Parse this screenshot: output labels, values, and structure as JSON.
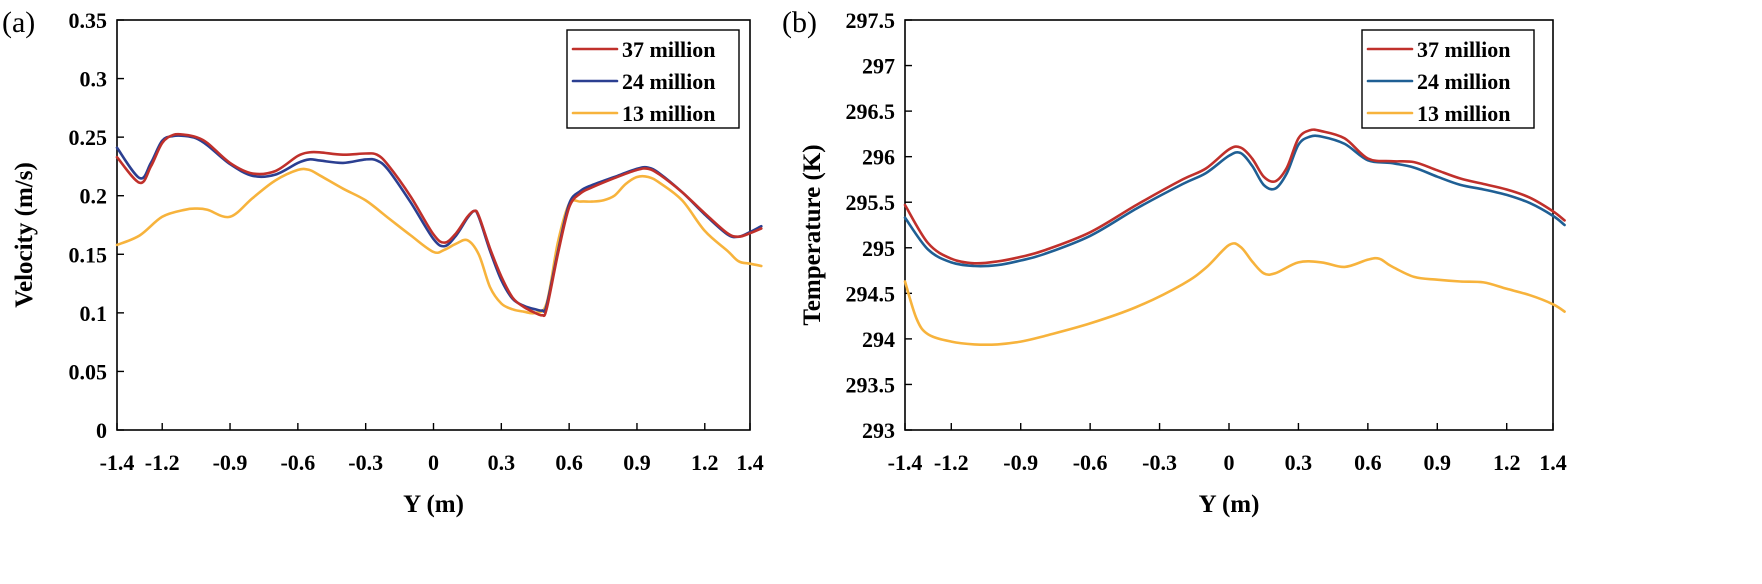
{
  "chart_data": [
    {
      "type": "line",
      "panel_label": "(a)",
      "title": "",
      "xlabel": "Y (m)",
      "ylabel": "Velocity (m/s)",
      "xlim": [
        -1.4,
        1.4
      ],
      "ylim": [
        0,
        0.35
      ],
      "xticks": [
        -1.4,
        -1.2,
        -0.9,
        -0.6,
        -0.3,
        0,
        0.3,
        0.6,
        0.9,
        1.2,
        1.4
      ],
      "xtick_labels": [
        "-1.4",
        "-1.2",
        "-0.9",
        "-0.6",
        "-0.3",
        "0",
        "0.3",
        "0.6",
        "0.9",
        "1.2",
        "1.4"
      ],
      "yticks": [
        0,
        0.05,
        0.1,
        0.15,
        0.2,
        0.25,
        0.3,
        0.35
      ],
      "ytick_labels": [
        "0",
        "0.05",
        "0.1",
        "0.15",
        "0.2",
        "0.25",
        "0.3",
        "0.35"
      ],
      "legend_position": "top-right",
      "series": [
        {
          "name": "37 million",
          "color": "#c0302b",
          "x": [
            -1.4,
            -1.3,
            -1.25,
            -1.2,
            -1.15,
            -1.1,
            -1.05,
            -1.0,
            -0.9,
            -0.8,
            -0.7,
            -0.6,
            -0.55,
            -0.5,
            -0.4,
            -0.3,
            -0.25,
            -0.2,
            -0.1,
            0.0,
            0.05,
            0.1,
            0.15,
            0.18,
            0.2,
            0.25,
            0.3,
            0.35,
            0.4,
            0.45,
            0.48,
            0.5,
            0.55,
            0.6,
            0.65,
            0.7,
            0.8,
            0.9,
            0.95,
            1.0,
            1.1,
            1.2,
            1.3,
            1.35,
            1.4,
            1.45
          ],
          "values": [
            0.233,
            0.211,
            0.225,
            0.245,
            0.252,
            0.252,
            0.25,
            0.245,
            0.228,
            0.219,
            0.221,
            0.234,
            0.237,
            0.237,
            0.235,
            0.236,
            0.235,
            0.226,
            0.199,
            0.167,
            0.16,
            0.168,
            0.182,
            0.187,
            0.183,
            0.155,
            0.131,
            0.113,
            0.105,
            0.1,
            0.098,
            0.103,
            0.15,
            0.19,
            0.202,
            0.207,
            0.215,
            0.222,
            0.223,
            0.218,
            0.203,
            0.185,
            0.168,
            0.165,
            0.168,
            0.172
          ]
        },
        {
          "name": "24 million",
          "color": "#2b3f91",
          "x": [
            -1.4,
            -1.3,
            -1.25,
            -1.2,
            -1.15,
            -1.1,
            -1.05,
            -1.0,
            -0.9,
            -0.8,
            -0.7,
            -0.6,
            -0.55,
            -0.5,
            -0.4,
            -0.3,
            -0.25,
            -0.2,
            -0.1,
            0.0,
            0.05,
            0.1,
            0.15,
            0.18,
            0.2,
            0.25,
            0.3,
            0.35,
            0.4,
            0.45,
            0.48,
            0.5,
            0.55,
            0.6,
            0.65,
            0.7,
            0.8,
            0.9,
            0.95,
            1.0,
            1.1,
            1.2,
            1.3,
            1.35,
            1.4,
            1.45
          ],
          "values": [
            0.241,
            0.215,
            0.228,
            0.247,
            0.251,
            0.251,
            0.249,
            0.243,
            0.227,
            0.217,
            0.218,
            0.228,
            0.231,
            0.23,
            0.228,
            0.231,
            0.23,
            0.222,
            0.194,
            0.163,
            0.157,
            0.166,
            0.181,
            0.187,
            0.182,
            0.153,
            0.128,
            0.112,
            0.106,
            0.103,
            0.102,
            0.106,
            0.152,
            0.193,
            0.204,
            0.209,
            0.216,
            0.223,
            0.224,
            0.219,
            0.203,
            0.184,
            0.167,
            0.165,
            0.169,
            0.174
          ]
        },
        {
          "name": "13 million",
          "color": "#f7b33c",
          "x": [
            -1.4,
            -1.3,
            -1.2,
            -1.1,
            -1.05,
            -1.0,
            -0.9,
            -0.8,
            -0.7,
            -0.6,
            -0.55,
            -0.5,
            -0.4,
            -0.3,
            -0.2,
            -0.1,
            0.0,
            0.05,
            0.1,
            0.15,
            0.2,
            0.25,
            0.3,
            0.35,
            0.4,
            0.45,
            0.5,
            0.55,
            0.6,
            0.65,
            0.7,
            0.75,
            0.8,
            0.85,
            0.9,
            0.95,
            1.0,
            1.1,
            1.2,
            1.3,
            1.35,
            1.4,
            1.45
          ],
          "values": [
            0.158,
            0.166,
            0.182,
            0.188,
            0.189,
            0.188,
            0.182,
            0.198,
            0.213,
            0.222,
            0.222,
            0.217,
            0.206,
            0.196,
            0.181,
            0.166,
            0.152,
            0.154,
            0.159,
            0.162,
            0.15,
            0.122,
            0.108,
            0.103,
            0.101,
            0.1,
            0.108,
            0.16,
            0.193,
            0.195,
            0.195,
            0.196,
            0.2,
            0.21,
            0.216,
            0.216,
            0.211,
            0.196,
            0.17,
            0.153,
            0.144,
            0.142,
            0.14
          ]
        }
      ]
    },
    {
      "type": "line",
      "panel_label": "(b)",
      "title": "",
      "xlabel": "Y (m)",
      "ylabel": "Temperature (K)",
      "xlim": [
        -1.4,
        1.4
      ],
      "ylim": [
        293,
        297.5
      ],
      "xticks": [
        -1.4,
        -1.2,
        -0.9,
        -0.6,
        -0.3,
        0,
        0.3,
        0.6,
        0.9,
        1.2,
        1.4
      ],
      "xtick_labels": [
        "-1.4",
        "-1.2",
        "-0.9",
        "-0.6",
        "-0.3",
        "0",
        "0.3",
        "0.6",
        "0.9",
        "1.2",
        "1.4"
      ],
      "yticks": [
        293,
        293.5,
        294,
        294.5,
        295,
        295.5,
        296,
        296.5,
        297,
        297.5
      ],
      "ytick_labels": [
        "293",
        "293.5",
        "294",
        "294.5",
        "295",
        "295.5",
        "296",
        "296.5",
        "297",
        "297.5"
      ],
      "legend_position": "top-right",
      "series": [
        {
          "name": "37 million",
          "color": "#c0302b",
          "x": [
            -1.4,
            -1.3,
            -1.2,
            -1.1,
            -1.0,
            -0.9,
            -0.8,
            -0.6,
            -0.4,
            -0.2,
            -0.1,
            0.0,
            0.05,
            0.1,
            0.15,
            0.2,
            0.25,
            0.3,
            0.35,
            0.4,
            0.5,
            0.6,
            0.7,
            0.8,
            0.9,
            1.0,
            1.1,
            1.2,
            1.3,
            1.4,
            1.45
          ],
          "values": [
            295.47,
            295.05,
            294.88,
            294.83,
            294.85,
            294.9,
            294.97,
            295.17,
            295.47,
            295.75,
            295.87,
            296.08,
            296.1,
            295.98,
            295.78,
            295.73,
            295.88,
            296.2,
            296.29,
            296.28,
            296.2,
            295.98,
            295.95,
            295.94,
            295.85,
            295.76,
            295.7,
            295.64,
            295.55,
            295.4,
            295.3
          ]
        },
        {
          "name": "24 million",
          "color": "#1f5f94",
          "x": [
            -1.4,
            -1.3,
            -1.2,
            -1.1,
            -1.0,
            -0.9,
            -0.8,
            -0.6,
            -0.4,
            -0.2,
            -0.1,
            0.0,
            0.05,
            0.1,
            0.15,
            0.2,
            0.25,
            0.3,
            0.35,
            0.4,
            0.5,
            0.6,
            0.7,
            0.8,
            0.9,
            1.0,
            1.1,
            1.2,
            1.3,
            1.4,
            1.45
          ],
          "values": [
            295.33,
            294.98,
            294.84,
            294.8,
            294.81,
            294.86,
            294.93,
            295.13,
            295.43,
            295.7,
            295.82,
            296.01,
            296.04,
            295.9,
            295.69,
            295.65,
            295.82,
            296.13,
            296.22,
            296.22,
            296.14,
            295.96,
            295.93,
            295.88,
            295.78,
            295.69,
            295.64,
            295.58,
            295.49,
            295.35,
            295.25
          ]
        },
        {
          "name": "13 million",
          "color": "#f7b33c",
          "x": [
            -1.4,
            -1.35,
            -1.3,
            -1.2,
            -1.1,
            -1.0,
            -0.9,
            -0.8,
            -0.6,
            -0.4,
            -0.2,
            -0.1,
            0.0,
            0.05,
            0.1,
            0.15,
            0.2,
            0.3,
            0.4,
            0.5,
            0.6,
            0.65,
            0.7,
            0.8,
            0.9,
            1.0,
            1.1,
            1.2,
            1.3,
            1.4,
            1.45
          ],
          "values": [
            294.63,
            294.22,
            294.05,
            293.97,
            293.94,
            293.94,
            293.97,
            294.03,
            294.17,
            294.35,
            294.6,
            294.78,
            295.03,
            295.01,
            294.85,
            294.72,
            294.72,
            294.84,
            294.84,
            294.79,
            294.87,
            294.88,
            294.8,
            294.68,
            294.65,
            294.63,
            294.62,
            294.55,
            294.48,
            294.38,
            294.3
          ]
        }
      ]
    }
  ]
}
